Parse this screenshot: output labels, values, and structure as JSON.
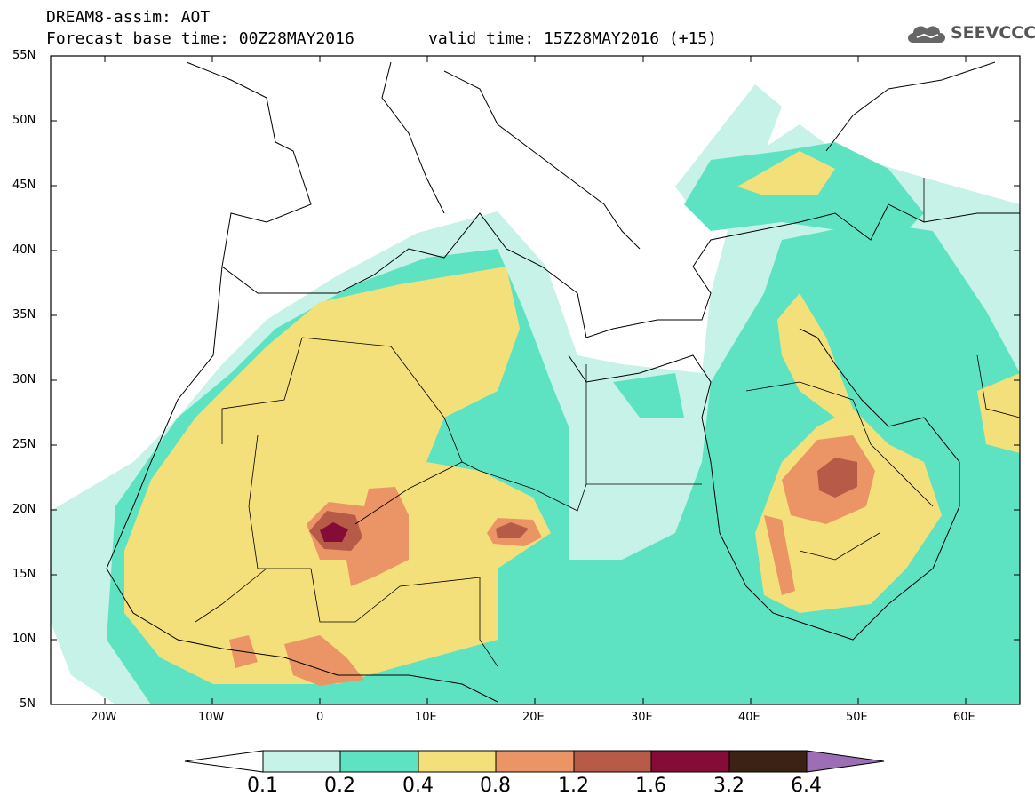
{
  "header": {
    "title_line1": "DREAM8-assim: AOT",
    "title_line2": "Forecast base time: 00Z28MAY2016",
    "title_line2_valid": "valid time: 15Z28MAY2016 (+15)",
    "logo_text": "SEEVCCC"
  },
  "map": {
    "lat_labels": [
      "55N",
      "50N",
      "45N",
      "40N",
      "35N",
      "30N",
      "25N",
      "20N",
      "15N",
      "10N",
      "5N"
    ],
    "lon_labels": [
      "20W",
      "10W",
      "0",
      "10E",
      "20E",
      "30E",
      "40E",
      "50E",
      "60E"
    ]
  },
  "colorbar": {
    "thresholds": [
      "0.1",
      "0.2",
      "0.4",
      "0.8",
      "1.2",
      "1.6",
      "3.2",
      "6.4"
    ],
    "colors": [
      "#c6f2e8",
      "#5ee3c2",
      "#f4e07a",
      "#eb9466",
      "#b85a48",
      "#840c37",
      "#3b2214",
      "#9b6eb5"
    ]
  }
}
